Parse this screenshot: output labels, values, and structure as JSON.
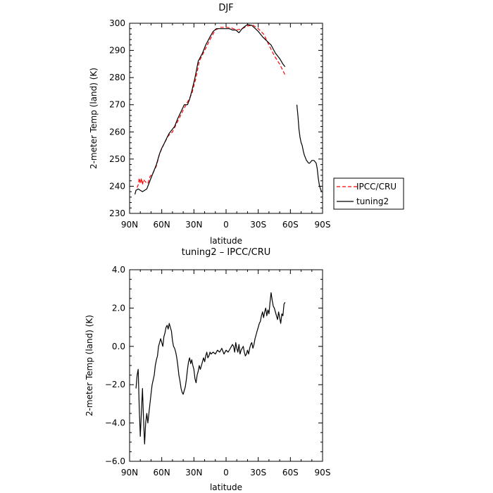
{
  "chart_data": [
    {
      "type": "line",
      "title": "DJF",
      "xlabel": "latitude",
      "ylabel": "2-meter Temp (land) (K)",
      "xlim": [
        90,
        -90
      ],
      "ylim": [
        230,
        300
      ],
      "x_tick_values": [
        90,
        60,
        30,
        0,
        -30,
        -60,
        -90
      ],
      "x_tick_labels": [
        "90N",
        "60N",
        "30N",
        "0",
        "30S",
        "60S",
        "90S"
      ],
      "y_tick_values": [
        230,
        240,
        250,
        260,
        270,
        280,
        290,
        300
      ],
      "y_tick_labels": [
        "230",
        "240",
        "250",
        "260",
        "270",
        "280",
        "290",
        "300"
      ],
      "legend": {
        "placement": "right",
        "entries": [
          "IPCC/CRU",
          "tuning2"
        ]
      },
      "series": [
        {
          "name": "IPCC/CRU",
          "color": "#ff0000",
          "dash": true,
          "points": [
            [
              83,
              239.5
            ],
            [
              82,
              240.5
            ],
            [
              81,
              243
            ],
            [
              80,
              241
            ],
            [
              79,
              243
            ],
            [
              78,
              240.5
            ],
            [
              77,
              242.5
            ],
            [
              75,
              241.5
            ],
            [
              73,
              241
            ],
            [
              71,
              243.5
            ],
            [
              68,
              245
            ],
            [
              65,
              247.5
            ],
            [
              62,
              252
            ],
            [
              58,
              255.5
            ],
            [
              54,
              258.5
            ],
            [
              50,
              260
            ],
            [
              45,
              264
            ],
            [
              40,
              268
            ],
            [
              36,
              271
            ],
            [
              32,
              274
            ],
            [
              28,
              280
            ],
            [
              25,
              286
            ],
            [
              20,
              290
            ],
            [
              15,
              294
            ],
            [
              10,
              297.5
            ],
            [
              5,
              298.5
            ],
            [
              0,
              298.5
            ],
            [
              -5,
              298.3
            ],
            [
              -10,
              297.5
            ],
            [
              -15,
              298
            ],
            [
              -20,
              299
            ],
            [
              -25,
              299.3
            ],
            [
              -30,
              298
            ],
            [
              -35,
              296
            ],
            [
              -40,
              292
            ],
            [
              -45,
              288
            ],
            [
              -50,
              285
            ],
            [
              -55,
              281
            ]
          ]
        },
        {
          "name": "tuning2",
          "color": "#000000",
          "dash": false,
          "segments": [
            [
              [
                85,
                237
              ],
              [
                84,
                238.5
              ],
              [
                82,
                239
              ],
              [
                80,
                238.5
              ],
              [
                78,
                238
              ],
              [
                76,
                238.5
              ],
              [
                74,
                239
              ],
              [
                72,
                241
              ],
              [
                70,
                243
              ],
              [
                68,
                245
              ],
              [
                65,
                248
              ],
              [
                62,
                252
              ],
              [
                60,
                254
              ],
              [
                58,
                255.5
              ],
              [
                55,
                258
              ],
              [
                53,
                259.5
              ],
              [
                50,
                261
              ],
              [
                48,
                262
              ],
              [
                45,
                265
              ],
              [
                42,
                267.5
              ],
              [
                39,
                270
              ],
              [
                36,
                270
              ],
              [
                34,
                272
              ],
              [
                32,
                275
              ],
              [
                29,
                280
              ],
              [
                26,
                286
              ],
              [
                22,
                289
              ],
              [
                19,
                292
              ],
              [
                15,
                295
              ],
              [
                12,
                297
              ],
              [
                9,
                298
              ],
              [
                5,
                298
              ],
              [
                0,
                298
              ],
              [
                -3,
                298
              ],
              [
                -6,
                297.5
              ],
              [
                -9,
                297.5
              ],
              [
                -12,
                296.5
              ],
              [
                -15,
                298
              ],
              [
                -18,
                299
              ],
              [
                -20,
                299.5
              ],
              [
                -24,
                299.2
              ],
              [
                -26,
                298.5
              ],
              [
                -30,
                297
              ],
              [
                -34,
                295
              ],
              [
                -38,
                293.5
              ],
              [
                -42,
                292
              ],
              [
                -46,
                289
              ],
              [
                -50,
                287
              ],
              [
                -53,
                285
              ],
              [
                -55,
                284
              ]
            ],
            [
              [
                -66,
                270
              ],
              [
                -67,
                266
              ],
              [
                -68,
                261
              ],
              [
                -69,
                258
              ],
              [
                -70,
                256
              ],
              [
                -71,
                255
              ],
              [
                -72,
                253
              ],
              [
                -73,
                251.5
              ],
              [
                -74,
                250.5
              ],
              [
                -75,
                249.5
              ],
              [
                -76,
                249
              ],
              [
                -77,
                248.5
              ],
              [
                -78,
                248.5
              ],
              [
                -79,
                249
              ],
              [
                -80,
                249.5
              ],
              [
                -82,
                249.5
              ],
              [
                -84,
                248.5
              ],
              [
                -85,
                246.5
              ],
              [
                -86,
                243
              ],
              [
                -87,
                240.5
              ],
              [
                -88,
                239
              ],
              [
                -89,
                238
              ]
            ]
          ]
        }
      ]
    },
    {
      "type": "line",
      "title": "tuning2 – IPCC/CRU",
      "xlabel": "latitude",
      "ylabel": "2-meter Temp (land) (K)",
      "xlim": [
        90,
        -90
      ],
      "ylim": [
        -6,
        4
      ],
      "x_tick_values": [
        90,
        60,
        30,
        0,
        -30,
        -60,
        -90
      ],
      "x_tick_labels": [
        "90N",
        "60N",
        "30N",
        "0",
        "30S",
        "60S",
        "90S"
      ],
      "y_tick_values": [
        -6,
        -4,
        -2,
        0,
        2,
        4
      ],
      "y_tick_labels": [
        "−6.0",
        "−4.0",
        "−2.0",
        "0.0",
        "2.0",
        "4.0"
      ],
      "series": [
        {
          "name": "tuning2",
          "color": "#000000",
          "dash": false,
          "points": [
            [
              84,
              -2.2
            ],
            [
              83,
              -1.5
            ],
            [
              82,
              -1.2
            ],
            [
              81,
              -3.2
            ],
            [
              80,
              -4.7
            ],
            [
              79,
              -3.5
            ],
            [
              78,
              -2.2
            ],
            [
              77,
              -3.8
            ],
            [
              76,
              -5.1
            ],
            [
              75,
              -4.0
            ],
            [
              74,
              -3.5
            ],
            [
              73,
              -4.0
            ],
            [
              72,
              -3.5
            ],
            [
              71,
              -3.0
            ],
            [
              70,
              -2.5
            ],
            [
              69,
              -2.0
            ],
            [
              67,
              -1.5
            ],
            [
              66,
              -1.0
            ],
            [
              65,
              -0.7
            ],
            [
              64,
              -0.5
            ],
            [
              63,
              0.0
            ],
            [
              62,
              0.2
            ],
            [
              61,
              0.4
            ],
            [
              60,
              0.2
            ],
            [
              59,
              0.0
            ],
            [
              58,
              0.5
            ],
            [
              57,
              0.7
            ],
            [
              56,
              1.0
            ],
            [
              55,
              1.1
            ],
            [
              54,
              0.9
            ],
            [
              53,
              1.2
            ],
            [
              52,
              1.0
            ],
            [
              51,
              0.8
            ],
            [
              50,
              0.3
            ],
            [
              49,
              0.0
            ],
            [
              48,
              -0.1
            ],
            [
              47,
              -0.3
            ],
            [
              46,
              -0.6
            ],
            [
              45,
              -1.0
            ],
            [
              44,
              -1.5
            ],
            [
              43,
              -1.8
            ],
            [
              42,
              -2.2
            ],
            [
              41,
              -2.4
            ],
            [
              40,
              -2.5
            ],
            [
              38,
              -2.1
            ],
            [
              37,
              -1.7
            ],
            [
              36,
              -1.2
            ],
            [
              35,
              -0.8
            ],
            [
              34,
              -0.6
            ],
            [
              33,
              -0.9
            ],
            [
              32,
              -0.7
            ],
            [
              31,
              -1.0
            ],
            [
              30,
              -1.2
            ],
            [
              29,
              -1.7
            ],
            [
              28,
              -1.9
            ],
            [
              27,
              -1.5
            ],
            [
              26,
              -1.3
            ],
            [
              25,
              -1.0
            ],
            [
              24,
              -1.2
            ],
            [
              23,
              -1.0
            ],
            [
              22,
              -0.8
            ],
            [
              21,
              -0.6
            ],
            [
              20,
              -0.8
            ],
            [
              19,
              -0.5
            ],
            [
              18,
              -0.3
            ],
            [
              17,
              -0.6
            ],
            [
              16,
              -0.5
            ],
            [
              15,
              -0.3
            ],
            [
              14,
              -0.4
            ],
            [
              12,
              -0.3
            ],
            [
              10,
              -0.4
            ],
            [
              8,
              -0.2
            ],
            [
              6,
              -0.3
            ],
            [
              4,
              -0.1
            ],
            [
              2,
              -0.4
            ],
            [
              0,
              -0.2
            ],
            [
              -2,
              -0.3
            ],
            [
              -4,
              -0.1
            ],
            [
              -6,
              0.1
            ],
            [
              -7,
              0.0
            ],
            [
              -8,
              -0.3
            ],
            [
              -9,
              0.2
            ],
            [
              -10,
              -0.1
            ],
            [
              -11,
              -0.3
            ],
            [
              -12,
              0.1
            ],
            [
              -13,
              -0.4
            ],
            [
              -14,
              -0.2
            ],
            [
              -15,
              -0.1
            ],
            [
              -16,
              0.0
            ],
            [
              -17,
              -0.3
            ],
            [
              -18,
              -0.5
            ],
            [
              -19,
              -0.4
            ],
            [
              -20,
              -0.2
            ],
            [
              -21,
              -0.4
            ],
            [
              -22,
              -0.1
            ],
            [
              -23,
              0.1
            ],
            [
              -24,
              0.2
            ],
            [
              -25,
              -0.1
            ],
            [
              -26,
              0.1
            ],
            [
              -27,
              0.4
            ],
            [
              -28,
              0.6
            ],
            [
              -29,
              0.8
            ],
            [
              -30,
              1.0
            ],
            [
              -31,
              1.2
            ],
            [
              -32,
              1.3
            ],
            [
              -33,
              1.6
            ],
            [
              -34,
              1.8
            ],
            [
              -35,
              1.5
            ],
            [
              -36,
              1.8
            ],
            [
              -37,
              2.0
            ],
            [
              -38,
              1.6
            ],
            [
              -39,
              1.9
            ],
            [
              -40,
              1.7
            ],
            [
              -41,
              2.3
            ],
            [
              -42,
              2.8
            ],
            [
              -43,
              2.4
            ],
            [
              -44,
              2.1
            ],
            [
              -45,
              2.0
            ],
            [
              -46,
              1.8
            ],
            [
              -47,
              1.6
            ],
            [
              -48,
              1.4
            ],
            [
              -49,
              1.8
            ],
            [
              -50,
              1.5
            ],
            [
              -51,
              1.2
            ],
            [
              -52,
              1.7
            ],
            [
              -53,
              1.6
            ],
            [
              -54,
              2.2
            ],
            [
              -55,
              2.3
            ]
          ]
        }
      ]
    }
  ]
}
